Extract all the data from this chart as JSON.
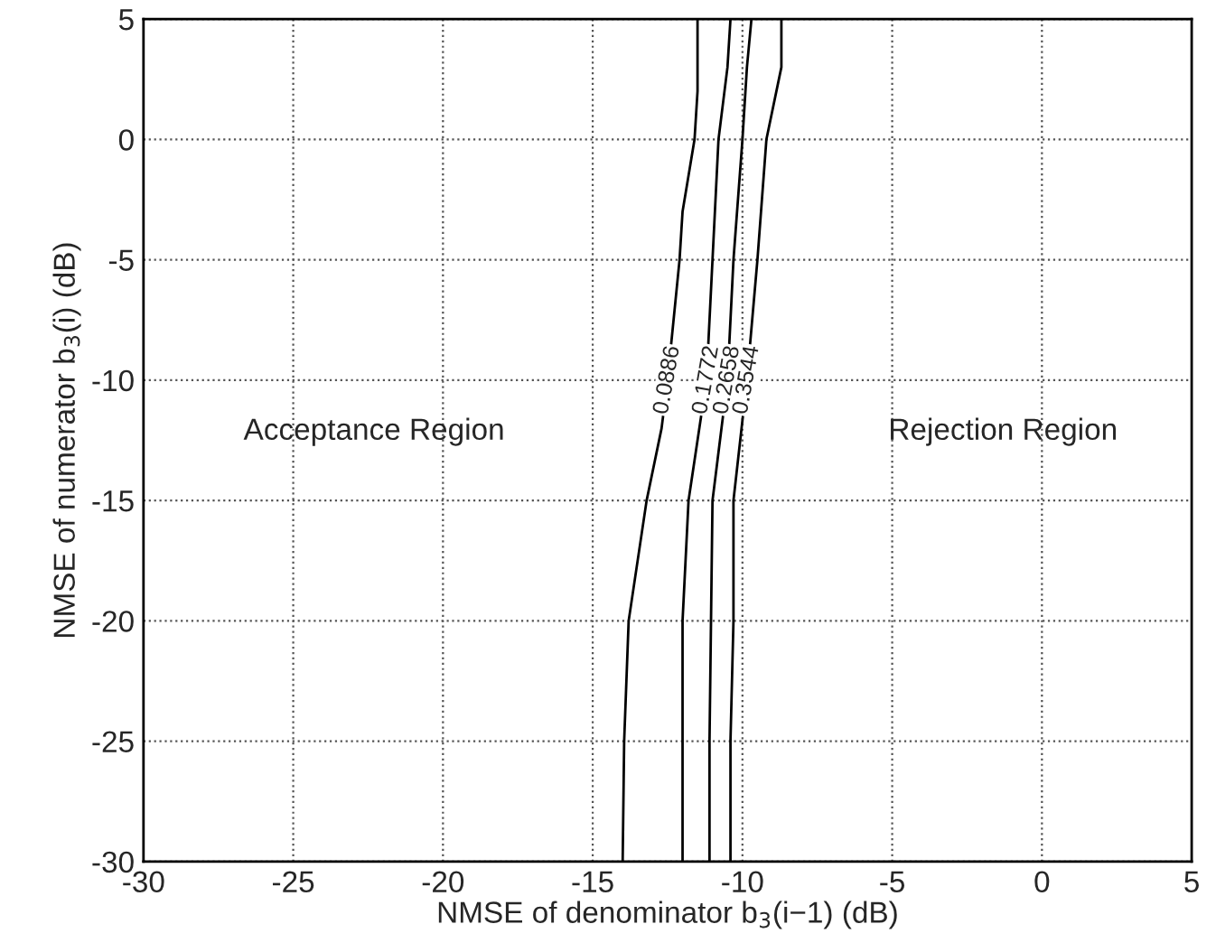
{
  "chart_data": {
    "type": "line",
    "xlabel": "NMSE of denominator b$_{3}$(i−1) (dB)",
    "ylabel": "NMSE of numerator b$_{3}$(i) (dB)",
    "xlim": [
      -30,
      5
    ],
    "xticks": [
      -30,
      -25,
      -20,
      -15,
      -10,
      -5,
      0,
      5
    ],
    "ylim": [
      -30,
      5
    ],
    "yticks": [
      -30,
      -25,
      -20,
      -15,
      -10,
      -5,
      0,
      5
    ],
    "grid": true,
    "marker": "none",
    "line_style": "solid",
    "annotations": [
      "Acceptance Region",
      "Rejection Region"
    ],
    "series": [
      {
        "name": "0.0886",
        "color": "#000000",
        "x": [
          -14.0,
          -13.95,
          -13.8,
          -13.2,
          -12.7,
          -12.5,
          -12.1,
          -12.0,
          -11.6,
          -11.5,
          -11.5
        ],
        "values": [
          -30,
          -25,
          -20,
          -15,
          -12,
          -10,
          -5,
          -3,
          0,
          2,
          5
        ]
      },
      {
        "name": "0.1772",
        "color": "#000000",
        "x": [
          -12.0,
          -12.0,
          -12.0,
          -11.8,
          -11.2,
          -11.0,
          -10.8,
          -10.5,
          -10.4
        ],
        "values": [
          -30,
          -25,
          -20,
          -15,
          -10,
          -5,
          0,
          3,
          5
        ]
      },
      {
        "name": "0.2658",
        "color": "#000000",
        "x": [
          -11.1,
          -11.1,
          -11.05,
          -11.0,
          -10.5,
          -10.3,
          -10.0,
          -9.85,
          -9.7
        ],
        "values": [
          -30,
          -25,
          -20,
          -15,
          -10,
          -5,
          0,
          3,
          5
        ]
      },
      {
        "name": "0.3544",
        "color": "#000000",
        "x": [
          -10.4,
          -10.4,
          -10.3,
          -10.3,
          -9.85,
          -9.5,
          -9.2,
          -8.7,
          -8.7
        ],
        "values": [
          -30,
          -25,
          -20,
          -15,
          -10,
          -5,
          0,
          3,
          5
        ]
      }
    ]
  }
}
